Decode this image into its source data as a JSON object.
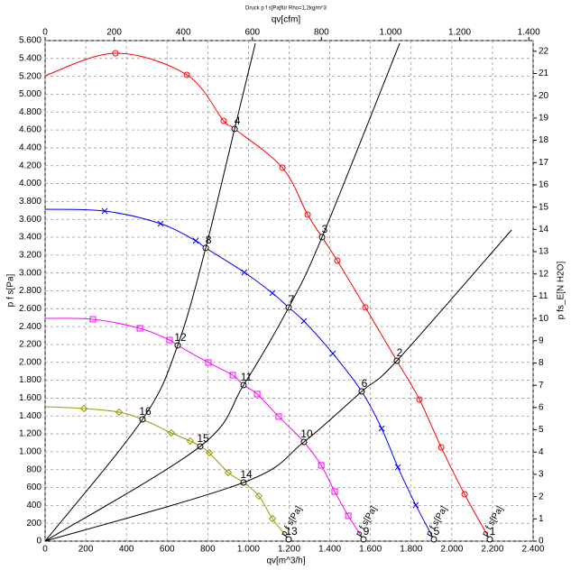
{
  "chart_data": {
    "type": "line",
    "title": "Druck p f s[Pa]für Rho=1,2kg/m^3",
    "xlabel": "qv[m^3/h]",
    "ylabel": "p f s[Pa]",
    "x2label": "qv[cfm]",
    "y2label": "p fs_E[N H2O]",
    "xlim": [
      0,
      2400
    ],
    "xticks": [
      0,
      200,
      400,
      600,
      800,
      {
        "value": 1000,
        "label": "1.000"
      },
      {
        "value": 1200,
        "label": "1.200"
      },
      {
        "value": 1400,
        "label": "1.400"
      },
      {
        "value": 1600,
        "label": "1.600"
      },
      {
        "value": 1800,
        "label": "1.800"
      },
      {
        "value": 2000,
        "label": "2.000"
      },
      {
        "value": 2200,
        "label": "2.200"
      },
      {
        "value": 2400,
        "label": "2.400"
      }
    ],
    "ylim": [
      0,
      5600
    ],
    "yticks": [
      0,
      200,
      400,
      600,
      800,
      {
        "value": 1000,
        "label": "1.000"
      },
      {
        "value": 1200,
        "label": "1.200"
      },
      {
        "value": 1400,
        "label": "1.400"
      },
      {
        "value": 1600,
        "label": "1.600"
      },
      {
        "value": 1800,
        "label": "1.800"
      },
      {
        "value": 2000,
        "label": "2.000"
      },
      {
        "value": 2200,
        "label": "2.200"
      },
      {
        "value": 2400,
        "label": "2.400"
      },
      {
        "value": 2600,
        "label": "2.600"
      },
      {
        "value": 2800,
        "label": "2.800"
      },
      {
        "value": 3000,
        "label": "3.000"
      },
      {
        "value": 3200,
        "label": "3.200"
      },
      {
        "value": 3400,
        "label": "3.400"
      },
      {
        "value": 3600,
        "label": "3.600"
      },
      {
        "value": 3800,
        "label": "3.800"
      },
      {
        "value": 4000,
        "label": "4.000"
      },
      {
        "value": 4200,
        "label": "4.200"
      },
      {
        "value": 4400,
        "label": "4.400"
      },
      {
        "value": 4600,
        "label": "4.600"
      },
      {
        "value": 4800,
        "label": "4.800"
      },
      {
        "value": 5000,
        "label": "5.000"
      },
      {
        "value": 5200,
        "label": "5.200"
      },
      {
        "value": 5400,
        "label": "5.400"
      },
      {
        "value": 5600,
        "label": "5.600"
      }
    ],
    "x2lim": [
      0,
      1412.6
    ],
    "x2ticks": [
      0,
      200,
      400,
      600,
      800,
      {
        "value": 1000,
        "label": "1.000"
      },
      {
        "value": 1200,
        "label": "1.200"
      },
      {
        "value": 1400,
        "label": "1.400"
      }
    ],
    "y2lim": [
      0,
      22.48
    ],
    "y2ticks": [
      0,
      1,
      2,
      3,
      4,
      5,
      6,
      7,
      8,
      9,
      10,
      11,
      12,
      13,
      14,
      15,
      16,
      17,
      18,
      19,
      20,
      21,
      22
    ],
    "grid": true,
    "series": [
      {
        "name": "p f s[Pa]",
        "color": "#ff0000",
        "marker": "circle",
        "x": [
          0,
          346,
          697,
          878,
          932,
          1167,
          1291,
          1362,
          1437,
          1575,
          1730,
          1841,
          1948,
          2063,
          2187
        ],
        "values": [
          5207,
          5459,
          5217,
          4702,
          4612,
          4178,
          3653,
          3401,
          3138,
          2614,
          2018,
          1584,
          1049,
          525,
          20
        ],
        "point_labels": [
          null,
          null,
          null,
          null,
          "4",
          null,
          null,
          "3",
          null,
          null,
          "2",
          null,
          null,
          null,
          "1"
        ]
      },
      {
        "name": "p f s[Pa]",
        "color": "#0000ff",
        "marker": "cross",
        "x": [
          0,
          293,
          568,
          741,
          790,
          980,
          1118,
          1198,
          1273,
          1415,
          1557,
          1655,
          1735,
          1823,
          1912
        ],
        "values": [
          3713,
          3693,
          3552,
          3360,
          3280,
          3007,
          2775,
          2614,
          2462,
          2099,
          1675,
          1261,
          827,
          404,
          20
        ],
        "point_labels": [
          null,
          null,
          null,
          null,
          "8",
          null,
          null,
          "7",
          null,
          null,
          "6",
          null,
          null,
          null,
          "5"
        ]
      },
      {
        "name": "p f s[Pa]",
        "color": "#ff00ff",
        "marker": "square",
        "x": [
          0,
          235,
          466,
          612,
          652,
          803,
          923,
          976,
          1043,
          1149,
          1273,
          1358,
          1424,
          1491,
          1566
        ],
        "values": [
          2492,
          2482,
          2381,
          2250,
          2190,
          1998,
          1857,
          1746,
          1645,
          1393,
          1110,
          848,
          555,
          283,
          20
        ],
        "point_labels": [
          null,
          null,
          null,
          null,
          "12",
          null,
          null,
          "11",
          null,
          null,
          "10",
          null,
          null,
          null,
          "9"
        ]
      },
      {
        "name": "p f s[Pa]",
        "color": "#999900",
        "marker": "diamond",
        "x": [
          0,
          191,
          364,
          479,
          621,
          714,
          763,
          807,
          901,
          976,
          1051,
          1118,
          1198
        ],
        "values": [
          1504,
          1483,
          1443,
          1362,
          1211,
          1120,
          1060,
          989,
          767,
          656,
          505,
          252,
          20
        ],
        "point_labels": [
          null,
          null,
          null,
          "16",
          null,
          null,
          "15",
          null,
          null,
          "14",
          null,
          null,
          "13"
        ]
      },
      {
        "color": "#000000",
        "x": [
          0,
          479,
          652,
          790,
          932,
          1034
        ],
        "values": [
          0,
          1362,
          2190,
          3280,
          4612,
          5570
        ]
      },
      {
        "color": "#000000",
        "x": [
          0,
          763,
          976,
          1198,
          1362,
          1744
        ],
        "values": [
          0,
          1060,
          1746,
          2614,
          3401,
          5570
        ]
      },
      {
        "color": "#000000",
        "x": [
          0,
          976,
          1273,
          1557,
          1730,
          2294
        ],
        "values": [
          0,
          656,
          1110,
          1675,
          2018,
          3481
        ]
      }
    ]
  }
}
